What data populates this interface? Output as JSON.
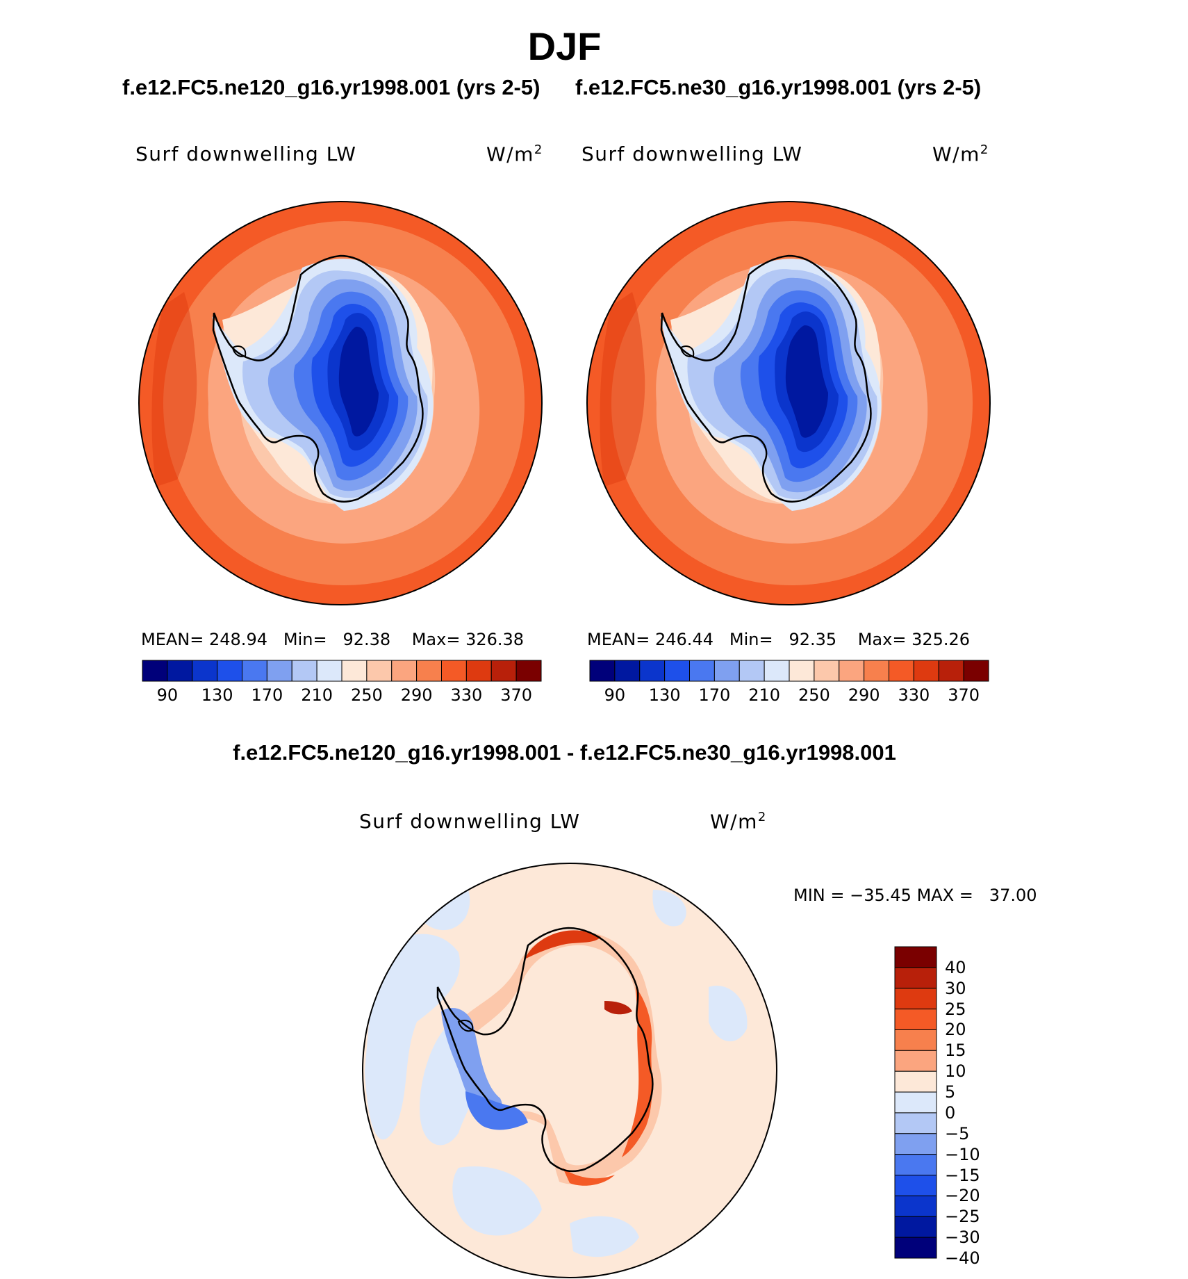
{
  "figure": {
    "title": "DJF",
    "case_titles": [
      "f.e12.FC5.ne120_g16.yr1998.001 (yrs 2-5)",
      "f.e12.FC5.ne30_g16.yr1998.001 (yrs 2-5)"
    ],
    "diff_title": "f.e12.FC5.ne120_g16.yr1998.001 - f.e12.FC5.ne30_g16.yr1998.001"
  },
  "panels": [
    {
      "variable": "Surf downwelling LW",
      "units_base": "W/m",
      "units_exp": "2",
      "mean_label": "MEAN=",
      "mean": "248.94",
      "min_label": "Min=",
      "min": "92.38",
      "max_label": "Max=",
      "max": "326.38"
    },
    {
      "variable": "Surf downwelling LW",
      "units_base": "W/m",
      "units_exp": "2",
      "mean_label": "MEAN=",
      "mean": "246.44",
      "min_label": "Min=",
      "min": "92.35",
      "max_label": "Max=",
      "max": "325.26"
    }
  ],
  "diff_panel": {
    "variable": "Surf downwelling LW",
    "units_base": "W/m",
    "units_exp": "2",
    "min_label": "MIN =",
    "min": "−35.45",
    "max_label": "MAX =",
    "max": "37.00"
  },
  "colorbar_abs": {
    "colors": [
      "#00007a",
      "#0018a0",
      "#0b35cc",
      "#1e50ea",
      "#4a78f0",
      "#7fa0f0",
      "#b3c8f5",
      "#dce8fa",
      "#fde8d8",
      "#fcc8ab",
      "#fba57f",
      "#f7804d",
      "#f45a26",
      "#de3a10",
      "#b8200a",
      "#7a0000"
    ],
    "tick_labels": [
      "90",
      "130",
      "170",
      "210",
      "250",
      "290",
      "330",
      "370"
    ]
  },
  "colorbar_diff": {
    "colors": [
      "#7a0000",
      "#b8200a",
      "#de3a10",
      "#f45a26",
      "#f7804d",
      "#fba57f",
      "#fde8d8",
      "#dce8fa",
      "#b3c8f5",
      "#7fa0f0",
      "#4a78f0",
      "#1e50ea",
      "#0b35cc",
      "#0018a0",
      "#00007a"
    ],
    "tick_labels": [
      "40",
      "30",
      "25",
      "20",
      "15",
      "10",
      "5",
      "0",
      "−5",
      "−10",
      "−15",
      "−20",
      "−25",
      "−30",
      "−40"
    ]
  }
}
